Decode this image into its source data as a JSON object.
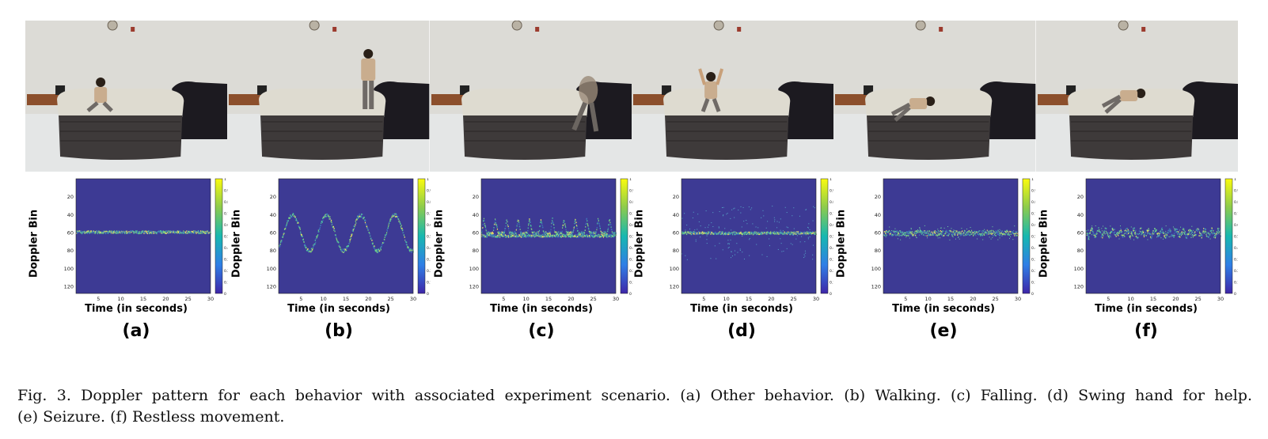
{
  "panels": [
    {
      "letter": "(a)",
      "pattern": "other"
    },
    {
      "letter": "(b)",
      "pattern": "walking"
    },
    {
      "letter": "(c)",
      "pattern": "falling"
    },
    {
      "letter": "(d)",
      "pattern": "swing"
    },
    {
      "letter": "(e)",
      "pattern": "seizure"
    },
    {
      "letter": "(f)",
      "pattern": "restless"
    }
  ],
  "axis": {
    "ylabel": "Doppler Bin",
    "xlabel": "Time (in seconds)",
    "xticks": [
      "5",
      "10",
      "15",
      "20",
      "25",
      "30"
    ],
    "yticks": [
      "20",
      "40",
      "60",
      "80",
      "100",
      "120"
    ],
    "colorbar_ticks": [
      "1",
      "0.9",
      "0.8",
      "0.7",
      "0.6",
      "0.5",
      "0.4",
      "0.3",
      "0.2",
      "0.1",
      "0"
    ]
  },
  "chart_data": [
    {
      "type": "heatmap",
      "title": "(a)",
      "xlabel": "Time (in seconds)",
      "ylabel": "Doppler Bin",
      "xlim": [
        0,
        30
      ],
      "ylim": [
        128,
        1
      ],
      "clim": [
        0,
        1
      ],
      "pattern": "flat band near bin 60"
    },
    {
      "type": "heatmap",
      "title": "(b)",
      "xlabel": "Time (in seconds)",
      "ylabel": "Doppler Bin",
      "xlim": [
        0,
        30
      ],
      "ylim": [
        128,
        1
      ],
      "clim": [
        0,
        1
      ],
      "pattern": "sinusoid between bins 40 and 80"
    },
    {
      "type": "heatmap",
      "title": "(c)",
      "xlabel": "Time (in seconds)",
      "ylabel": "Doppler Bin",
      "xlim": [
        0,
        30
      ],
      "ylim": [
        128,
        1
      ],
      "clim": [
        0,
        1
      ],
      "pattern": "periodic spikes from bin 60 up to bin 45"
    },
    {
      "type": "heatmap",
      "title": "(d)",
      "xlabel": "Time (in seconds)",
      "ylabel": "Doppler Bin",
      "xlim": [
        0,
        30
      ],
      "ylim": [
        128,
        1
      ],
      "clim": [
        0,
        1
      ],
      "pattern": "band near bin 60 with scattered noise"
    },
    {
      "type": "heatmap",
      "title": "(e)",
      "xlabel": "Time (in seconds)",
      "ylabel": "Doppler Bin",
      "xlim": [
        0,
        30
      ],
      "ylim": [
        128,
        1
      ],
      "clim": [
        0,
        1
      ],
      "pattern": "thick noisy band near bin 60"
    },
    {
      "type": "heatmap",
      "title": "(f)",
      "xlabel": "Time (in seconds)",
      "ylabel": "Doppler Bin",
      "xlim": [
        0,
        30
      ],
      "ylim": [
        128,
        1
      ],
      "clim": [
        0,
        1
      ],
      "pattern": "jagged band near bin 60"
    }
  ],
  "caption": {
    "line1": "Fig. 3.  Doppler pattern for each behavior with associated experiment scenario. (a) Other behavior. (b) Walking. (c) Falling. (d) Swing hand for help.",
    "line2": "(e) Seizure. (f) Restless movement."
  },
  "colors": {
    "heatmap_bg": "#3d3a94",
    "band": "#f0e06a",
    "band_mid": "#4fc3a1",
    "wall": "#dcdbd6",
    "floor": "#e4e6e6",
    "mattress": "#dedbd0",
    "bed_base": "#3e3a3a",
    "sofa": "#1c1a20"
  }
}
